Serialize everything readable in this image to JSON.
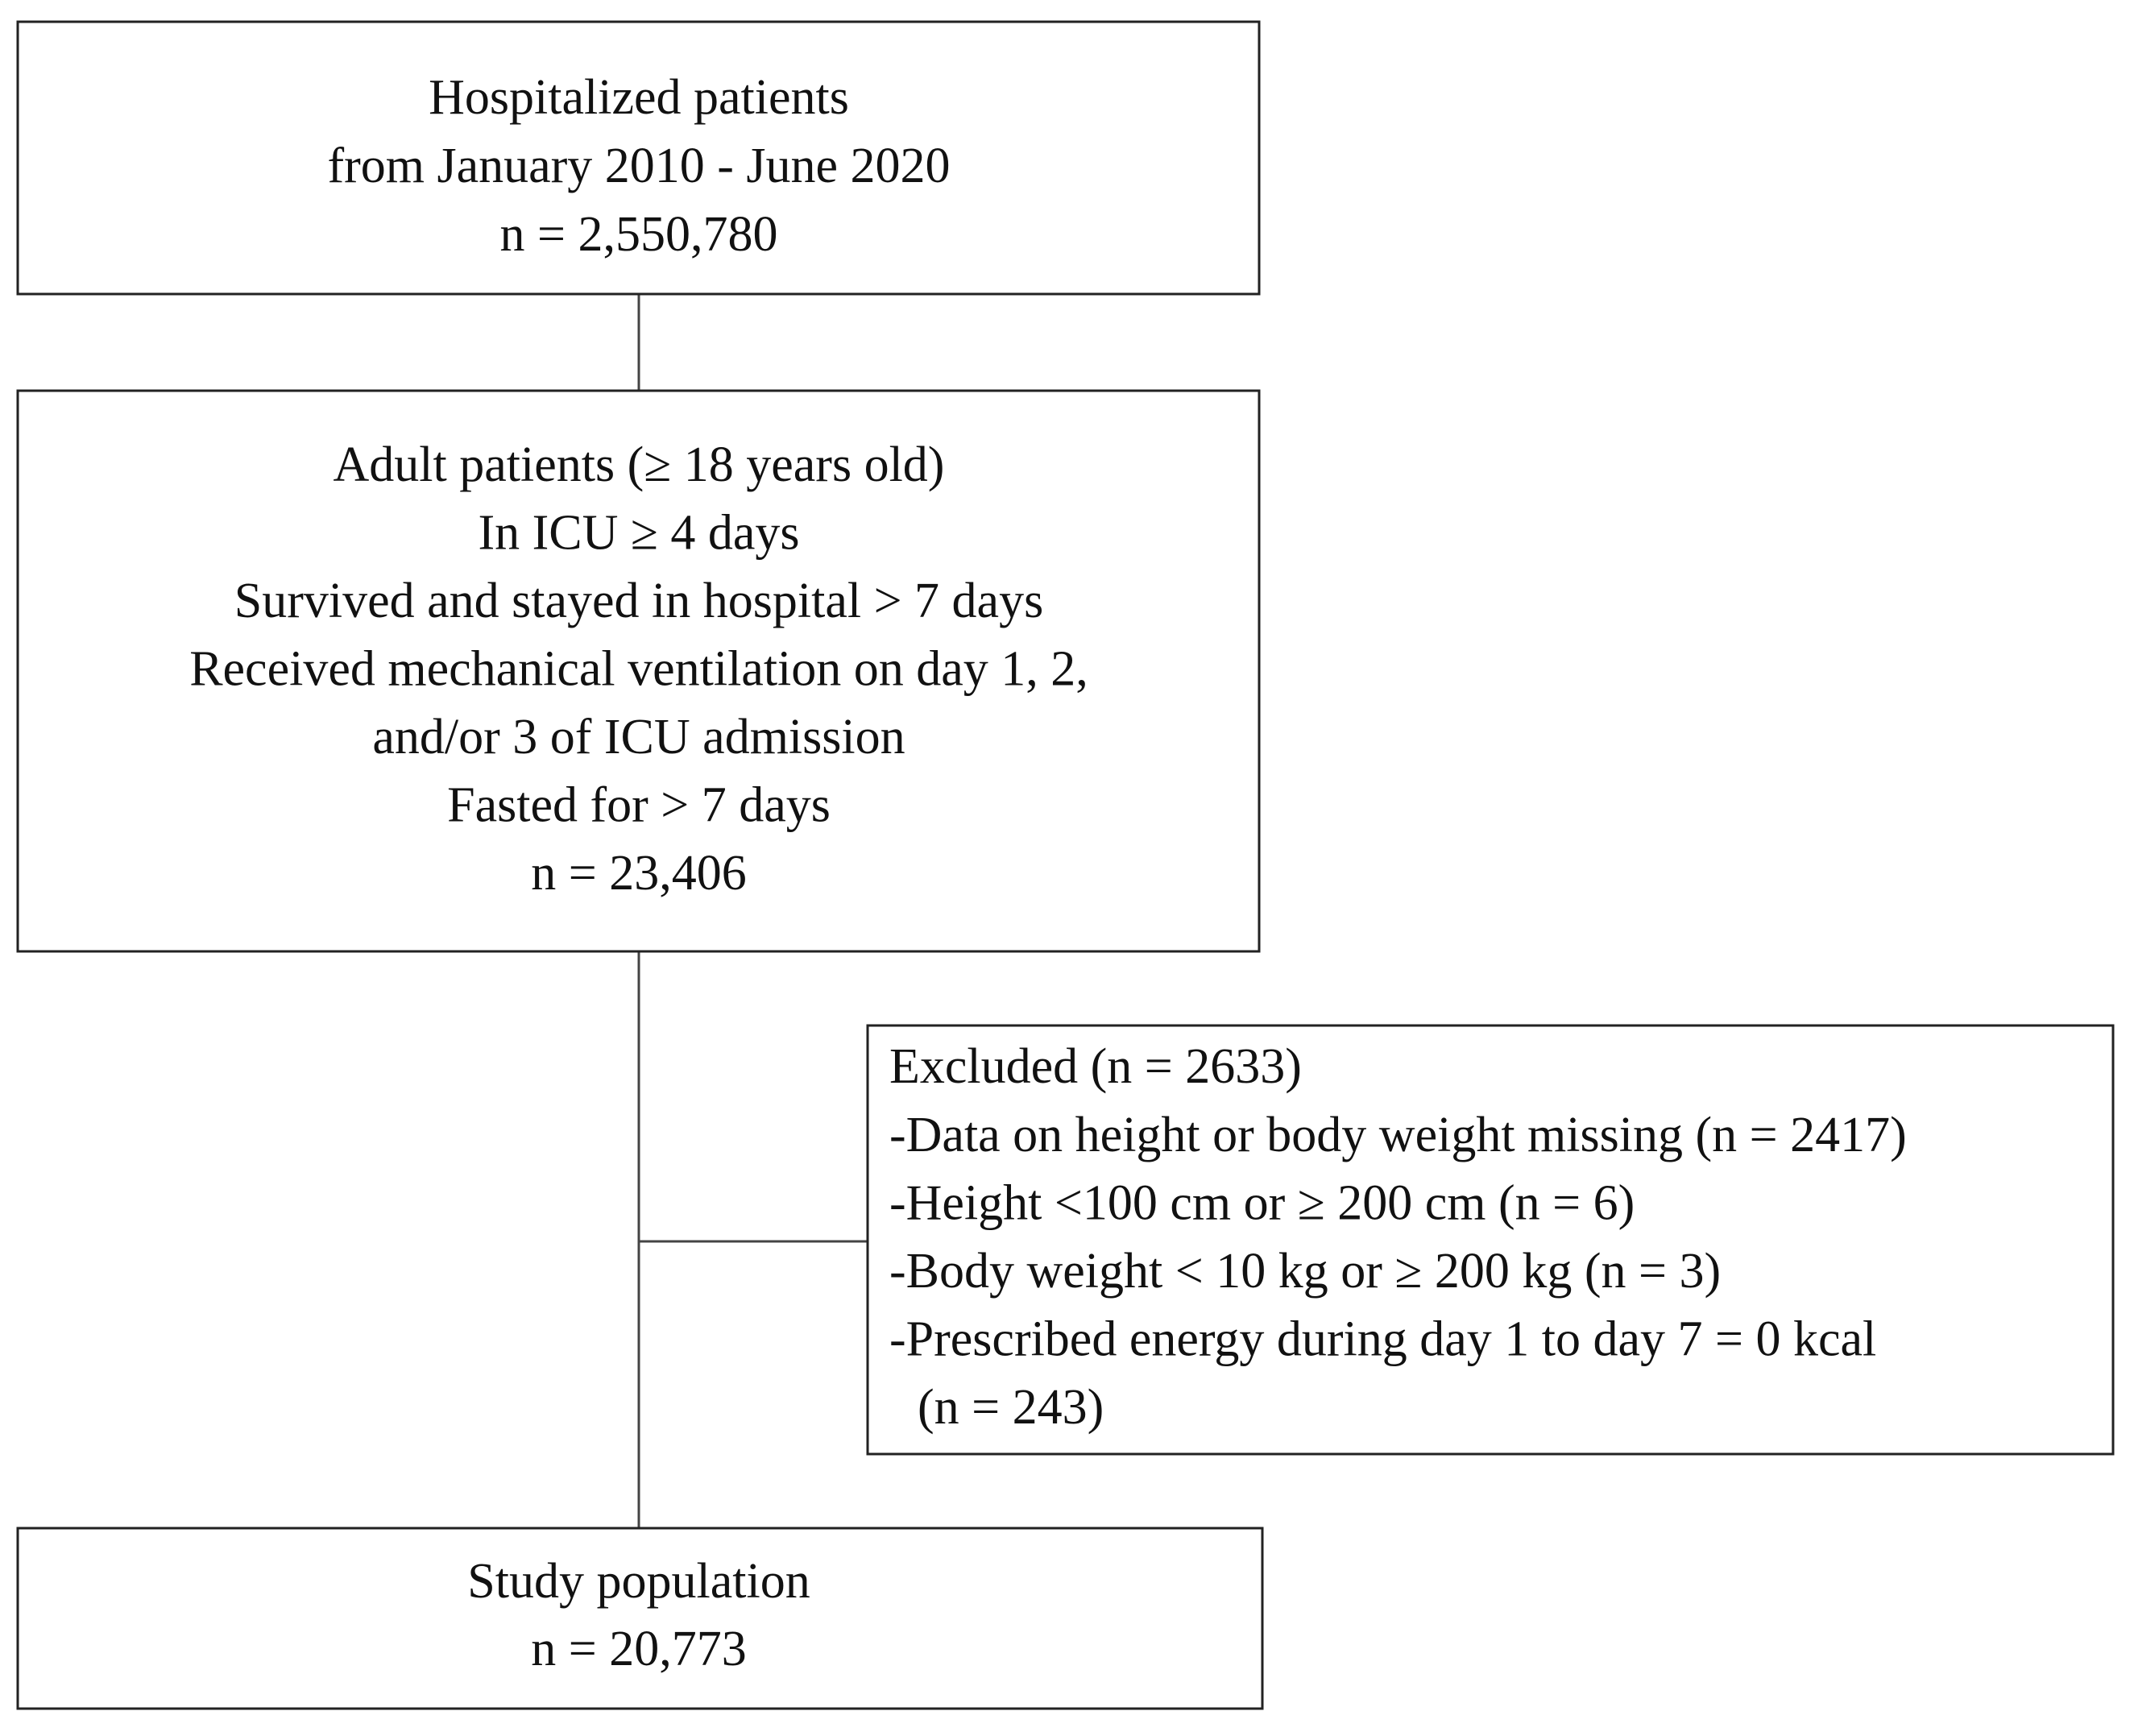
{
  "nodes": [
    {
      "lines": [
        "Hospitalized patients",
        "from January 2010 - June 2020",
        "n = 2,550,780"
      ]
    },
    {
      "lines": [
        "Adult patients (≥ 18 years old)",
        "In ICU ≥ 4 days",
        "Survived and stayed in hospital > 7 days",
        "Received mechanical ventilation on day 1, 2,",
        "and/or 3 of ICU admission",
        "Fasted for > 7 days",
        "n = 23,406"
      ]
    },
    {
      "lines": [
        "Excluded (n = 2633)",
        "-Data on height or body weight missing (n = 2417)",
        "-Height <100 cm or ≥ 200 cm (n = 6)",
        "-Body weight < 10 kg or ≥ 200 kg (n = 3)",
        "-Prescribed energy during day 1 to day 7 = 0 kcal",
        "(n = 243)"
      ]
    },
    {
      "lines": [
        "Study population",
        "n = 20,773"
      ]
    }
  ]
}
